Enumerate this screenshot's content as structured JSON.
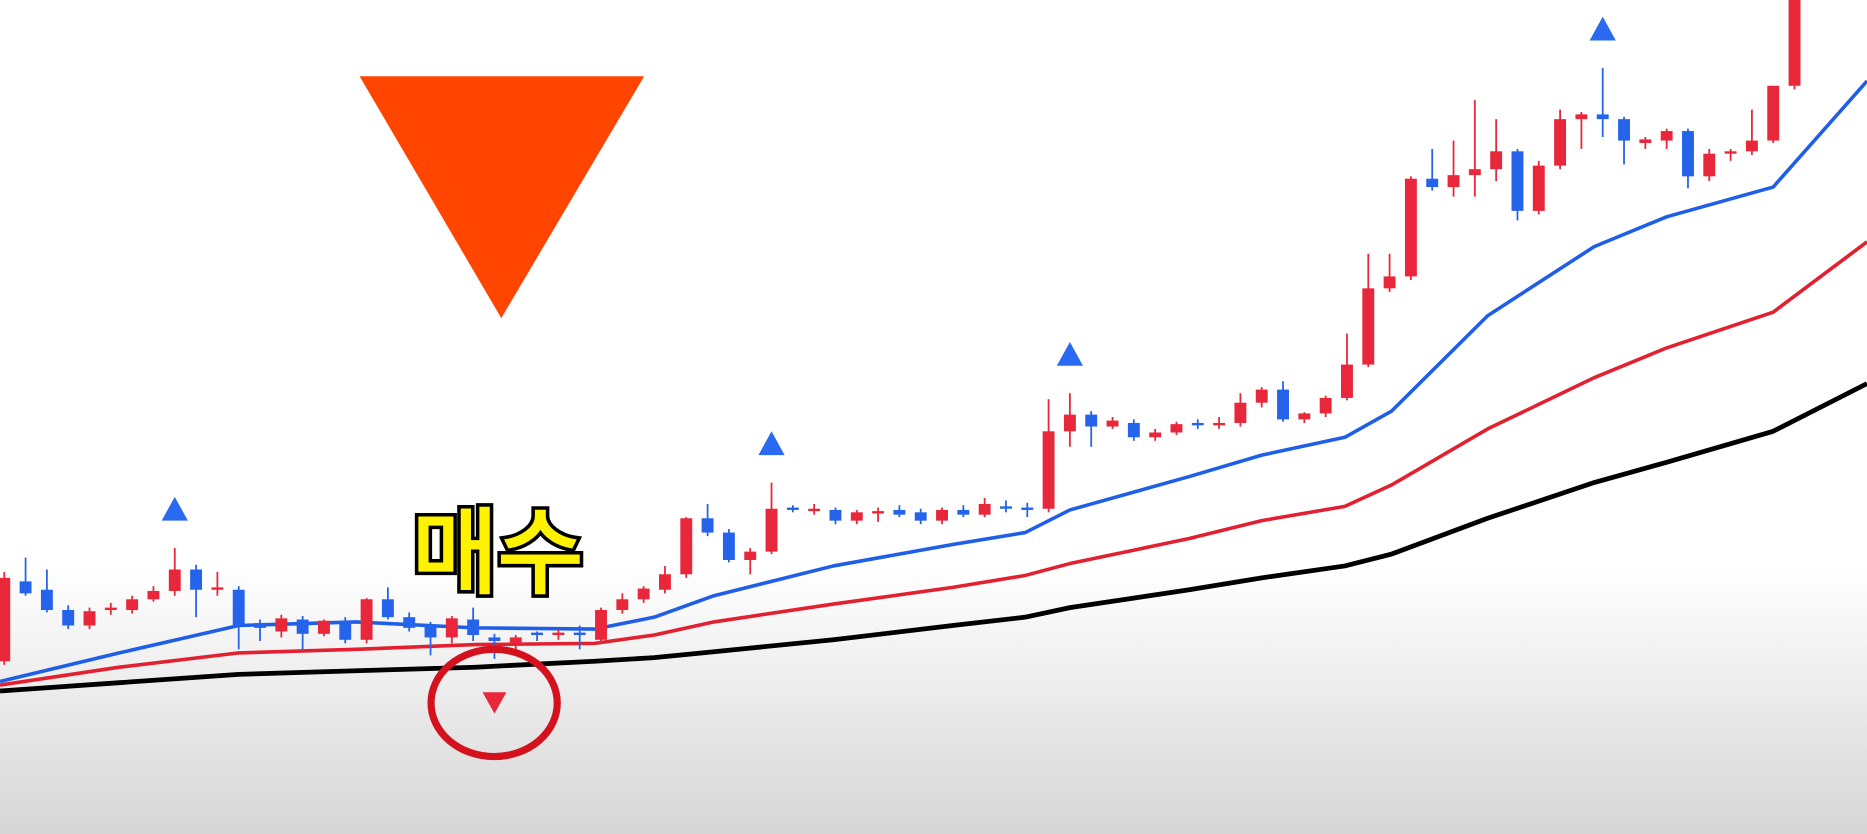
{
  "chart_data": {
    "type": "candlestick",
    "annotation": "매수",
    "xlim": [
      -0.2,
      87.4
    ],
    "ylim": [
      0,
      700
    ],
    "up_color": "#e8273a",
    "down_color": "#2563eb",
    "candles": {
      "open": [
        145,
        212,
        205,
        188,
        175,
        189,
        188,
        197,
        204,
        222,
        206,
        205,
        177,
        170,
        180,
        168,
        179,
        163,
        197,
        182,
        175,
        165,
        180,
        165,
        160,
        169,
        168,
        169,
        163,
        188,
        197,
        205,
        218,
        265,
        253,
        230,
        237,
        274,
        271,
        272,
        263,
        269,
        272,
        270,
        263,
        272,
        268,
        275,
        274,
        273,
        338,
        352,
        342,
        345,
        333,
        337,
        345,
        343,
        345,
        362,
        373,
        348,
        353,
        366,
        394,
        458,
        468,
        550,
        543,
        553,
        558,
        573,
        523,
        561,
        600,
        604,
        600,
        580,
        582,
        590,
        552,
        571,
        573,
        582,
        628
      ],
      "high": [
        220,
        232,
        222,
        192,
        190,
        194,
        200,
        208,
        240,
        226,
        220,
        208,
        180,
        184,
        183,
        180,
        182,
        198,
        207,
        186,
        178,
        183,
        190,
        168,
        167,
        170,
        172,
        175,
        190,
        202,
        208,
        225,
        266,
        277,
        256,
        240,
        295,
        276,
        277,
        274,
        272,
        274,
        276,
        273,
        274,
        276,
        282,
        280,
        278,
        365,
        370,
        355,
        350,
        348,
        340,
        346,
        348,
        350,
        370,
        375,
        380,
        354,
        368,
        420,
        487,
        487,
        552,
        575,
        582,
        616,
        600,
        575,
        565,
        608,
        606,
        643,
        602,
        585,
        592,
        592,
        575,
        575,
        608,
        628,
        700
      ],
      "low": [
        142,
        200,
        186,
        172,
        172,
        184,
        185,
        195,
        200,
        182,
        200,
        155,
        162,
        165,
        155,
        166,
        160,
        160,
        180,
        170,
        150,
        160,
        162,
        147,
        155,
        162,
        163,
        155,
        160,
        185,
        194,
        202,
        215,
        250,
        228,
        218,
        235,
        270,
        268,
        260,
        260,
        262,
        266,
        260,
        260,
        266,
        266,
        270,
        266,
        270,
        325,
        325,
        340,
        330,
        330,
        335,
        340,
        340,
        342,
        358,
        346,
        345,
        350,
        364,
        392,
        455,
        465,
        540,
        535,
        535,
        548,
        515,
        520,
        558,
        575,
        585,
        562,
        575,
        575,
        542,
        548,
        565,
        570,
        580,
        625
      ],
      "close": [
        215,
        202,
        188,
        175,
        187,
        190,
        197,
        204,
        222,
        205,
        207,
        175,
        173,
        181,
        168,
        179,
        163,
        197,
        182,
        173,
        165,
        181,
        167,
        162,
        165,
        167,
        169,
        167,
        188,
        197,
        206,
        218,
        265,
        253,
        230,
        237,
        273,
        272,
        273,
        263,
        270,
        271,
        268,
        263,
        272,
        268,
        277,
        273,
        272,
        338,
        352,
        342,
        347,
        333,
        337,
        344,
        343,
        345,
        362,
        373,
        348,
        353,
        366,
        394,
        458,
        468,
        550,
        543,
        553,
        558,
        573,
        523,
        561,
        600,
        604,
        600,
        582,
        583,
        590,
        552,
        571,
        573,
        582,
        628,
        700
      ]
    },
    "series": [
      {
        "color": "#1f5fe8",
        "x": [
          -0.2,
          5.4,
          11,
          16.5,
          22.1,
          27.7,
          30.5,
          33.3,
          38.9,
          44.5,
          47.9,
          50,
          55.6,
          59,
          62.9,
          65.1,
          69.6,
          74.6,
          78,
          83,
          87.4
        ],
        "values": [
          128,
          152,
          175,
          178,
          173,
          172,
          182,
          200,
          225,
          243,
          253,
          272,
          300,
          318,
          333,
          355,
          435,
          493,
          518,
          543,
          632
        ]
      },
      {
        "color": "#e3202f",
        "x": [
          -0.2,
          5.4,
          11,
          16.5,
          22.1,
          27.7,
          30.5,
          33.3,
          38.9,
          44.5,
          47.9,
          50,
          55.6,
          59,
          62.9,
          65.1,
          69.6,
          74.6,
          78,
          83,
          87.4
        ],
        "values": [
          125,
          140,
          152,
          155,
          159,
          160,
          167,
          178,
          193,
          207,
          217,
          227,
          248,
          263,
          275,
          293,
          340,
          383,
          408,
          438,
          497
        ]
      },
      {
        "color": "#000000",
        "x": [
          -0.2,
          5.4,
          11,
          16.5,
          22.1,
          27.7,
          30.5,
          33.3,
          38.9,
          44.5,
          47.9,
          50,
          55.6,
          59,
          62.9,
          65.1,
          69.6,
          74.6,
          78,
          83,
          87.4
        ],
        "values": [
          120,
          127,
          134,
          137,
          140,
          145,
          148,
          153,
          163,
          175,
          182,
          190,
          205,
          215,
          225,
          235,
          265,
          295,
          312,
          338,
          378
        ]
      }
    ],
    "up_markers": {
      "x": [
        8,
        36,
        50,
        75
      ],
      "color": "#2a6af0"
    },
    "down_markers": {
      "x": [
        23
      ],
      "color": "#e8273a"
    }
  }
}
